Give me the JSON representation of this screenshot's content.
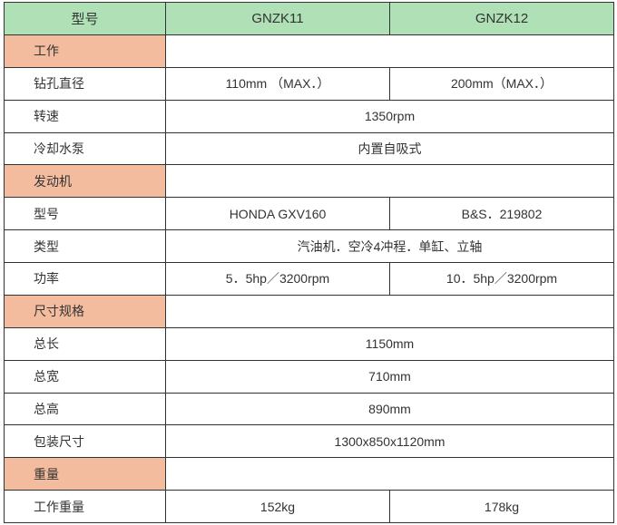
{
  "colors": {
    "header_bg": "#afe0b6",
    "section_bg": "#f4bc9e",
    "body_bg": "#ffffff",
    "border": "#333333",
    "text": "#333333"
  },
  "header": {
    "model_label": "型号",
    "col1": "GNZK11",
    "col2": "GNZK12"
  },
  "sections": {
    "work": {
      "title": "工作",
      "drill_dia": {
        "label": "钻孔直径",
        "v1": "110mm （MAX．）",
        "v2": "200mm（MAX．）"
      },
      "speed": {
        "label": "转速",
        "v": "1350rpm"
      },
      "pump": {
        "label": "冷却水泵",
        "v": "内置自吸式"
      }
    },
    "engine": {
      "title": "发动机",
      "model": {
        "label": "型号",
        "v1": "HONDA  GXV160",
        "v2": "B&S．219802"
      },
      "type": {
        "label": "类型",
        "v": "汽油机．空冷4冲程．单缸、立轴"
      },
      "power": {
        "label": "功率",
        "v1": "5．5hp／3200rpm",
        "v2": "10．5hp／3200rpm"
      }
    },
    "dims": {
      "title": "尺寸规格",
      "length": {
        "label": "总长",
        "v": "1150mm"
      },
      "width": {
        "label": "总宽",
        "v": "710mm"
      },
      "height": {
        "label": "总高",
        "v": "890mm"
      },
      "package": {
        "label": "包装尺寸",
        "v": "1300x850x1120mm"
      }
    },
    "weight": {
      "title": "重量",
      "working": {
        "label": "工作重量",
        "v1": "152kg",
        "v2": "178kg"
      }
    }
  }
}
